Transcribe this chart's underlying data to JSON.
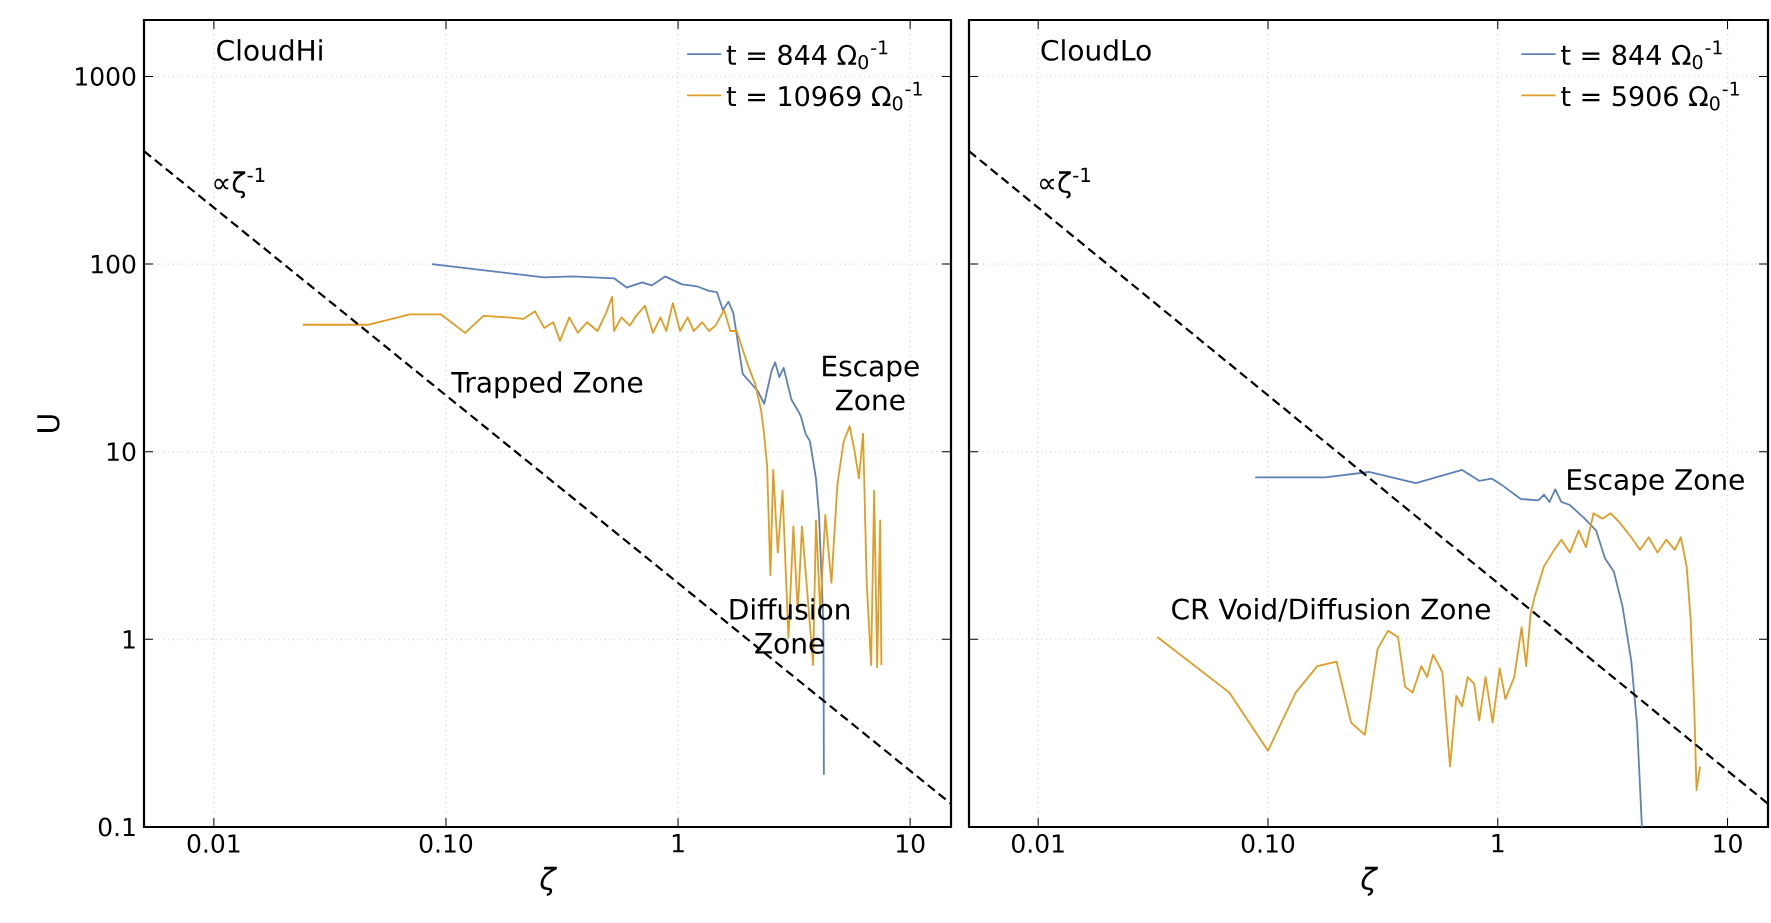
{
  "chart_data": [
    {
      "type": "line",
      "xlabel": "ζ",
      "ylabel": "U",
      "log": "xy",
      "grid": true,
      "legend": "top right",
      "xlim": [
        0.005,
        15
      ],
      "ylim": [
        0.1,
        2000
      ],
      "xticks": [
        0.01,
        {
          "value": 0.1,
          "label": "0.10"
        },
        1,
        10
      ],
      "yticks": [
        0.1,
        1,
        10,
        100,
        1000
      ],
      "annotations": [
        "CloudHi",
        "Trapped Zone",
        "Escape Zone",
        "Diffusion Zone",
        "∝ζ$^{-1}$"
      ],
      "series": [
        {
          "name": "t = 844 Ω$_{0}$$^{-1}$",
          "color": "#5e81b5",
          "x": [
            0.087,
            0.265,
            0.35,
            0.53,
            0.6,
            0.7,
            0.77,
            0.88,
            1.04,
            1.21,
            1.36,
            1.47,
            1.56,
            1.65,
            1.73,
            1.9,
            2.21,
            2.35,
            2.53,
            2.62,
            2.73,
            2.85,
            3.08,
            3.28,
            3.38,
            3.55,
            3.7,
            3.93,
            4.05,
            4.23,
            4.25
          ],
          "values": [
            100,
            85,
            86,
            84,
            75,
            80,
            77,
            86,
            78,
            76,
            72,
            71,
            57,
            63,
            55,
            26,
            21,
            18,
            27,
            30,
            25,
            28,
            19,
            16.6,
            15.5,
            12.4,
            11.4,
            7.2,
            4.6,
            1.19,
            0.19
          ]
        },
        {
          "name": "t = 10969 Ω$_{0}$$^{-1}$",
          "color": "#e19c24",
          "x": [
            0.0242,
            0.046,
            0.07,
            0.095,
            0.121,
            0.145,
            0.185,
            0.215,
            0.242,
            0.265,
            0.29,
            0.31,
            0.34,
            0.37,
            0.405,
            0.45,
            0.49,
            0.52,
            0.53,
            0.57,
            0.62,
            0.66,
            0.72,
            0.78,
            0.84,
            0.89,
            0.95,
            1.02,
            1.1,
            1.17,
            1.27,
            1.36,
            1.45,
            1.58,
            1.68,
            1.79,
            1.9,
            2.02,
            2.15,
            2.28,
            2.35,
            2.42,
            2.5,
            2.57,
            2.69,
            2.82,
            2.99,
            3.14,
            3.28,
            3.42,
            3.59,
            3.82,
            3.93,
            4.1,
            4.31,
            4.58,
            4.86,
            5.17,
            5.49,
            5.77,
            6.02,
            6.27,
            6.5,
            6.79,
            7.0,
            7.21,
            7.43,
            7.52
          ],
          "values": [
            47.5,
            47.5,
            54,
            54,
            43,
            53,
            52,
            51,
            56,
            45.7,
            49,
            39,
            52,
            43,
            49,
            44,
            55,
            67,
            44,
            52,
            47,
            53,
            60,
            43,
            52,
            44,
            62,
            44,
            52,
            44,
            49,
            44,
            47,
            57,
            44,
            44,
            35,
            28,
            23,
            16.6,
            12.3,
            8.4,
            2.2,
            8.0,
            2.9,
            6.2,
            1.02,
            4.0,
            1.4,
            4.0,
            1.9,
            0.73,
            4.3,
            1.4,
            4.6,
            2.0,
            6.7,
            11.3,
            13.7,
            10,
            7.2,
            12.5,
            2.0,
            0.73,
            6.2,
            0.71,
            4.3,
            0.73
          ]
        },
        {
          "color": "#000000",
          "line_style": "dashed",
          "x": [
            0.005,
            15
          ],
          "values": [
            400,
            0.133
          ]
        }
      ]
    },
    {
      "type": "line",
      "xlabel": "ζ",
      "log": "xy",
      "grid": true,
      "legend": "top right",
      "tick_labels": "x",
      "xlim": [
        0.005,
        15
      ],
      "ylim": [
        0.1,
        2000
      ],
      "xticks": [
        0.01,
        {
          "value": 0.1,
          "label": "0.10"
        },
        1,
        10
      ],
      "yticks": [
        0.1,
        1,
        10,
        100,
        1000
      ],
      "annotations": [
        "CloudLo",
        "Escape Zone",
        "CR Void/Diffusion Zone",
        "∝ζ$^{-1}$"
      ],
      "series": [
        {
          "name": "t = 844 Ω$_{0}$$^{-1}$",
          "color": "#5e81b5",
          "x": [
            0.088,
            0.177,
            0.275,
            0.44,
            0.7,
            0.83,
            0.94,
            1.05,
            1.26,
            1.5,
            1.59,
            1.68,
            1.78,
            1.89,
            2.06,
            2.39,
            2.68,
            2.93,
            3.2,
            3.49,
            3.81,
            4.04,
            4.24
          ],
          "values": [
            7.3,
            7.3,
            7.8,
            6.8,
            8.0,
            7.0,
            7.2,
            6.6,
            5.6,
            5.5,
            5.9,
            5.4,
            6.3,
            5.4,
            5.2,
            4.4,
            3.8,
            2.7,
            2.3,
            1.5,
            0.77,
            0.35,
            0.1
          ]
        },
        {
          "name": "t = 5906 Ω$_{0}$$^{-1}$",
          "color": "#e19c24",
          "x": [
            0.033,
            0.068,
            0.1,
            0.132,
            0.164,
            0.199,
            0.23,
            0.264,
            0.3,
            0.333,
            0.368,
            0.395,
            0.426,
            0.465,
            0.493,
            0.523,
            0.574,
            0.62,
            0.66,
            0.7,
            0.74,
            0.79,
            0.83,
            0.885,
            0.95,
            1.02,
            1.08,
            1.18,
            1.27,
            1.33,
            1.39,
            1.45,
            1.59,
            1.73,
            1.89,
            2.06,
            2.25,
            2.42,
            2.61,
            2.85,
            3.1,
            3.39,
            3.81,
            4.16,
            4.54,
            4.96,
            5.41,
            5.9,
            6.26,
            6.64,
            6.91,
            7.16,
            7.33,
            7.59
          ],
          "values": [
            1.03,
            0.52,
            0.255,
            0.52,
            0.72,
            0.76,
            0.36,
            0.31,
            0.89,
            1.11,
            1.03,
            0.56,
            0.52,
            0.72,
            0.63,
            0.83,
            0.67,
            0.21,
            0.5,
            0.44,
            0.63,
            0.58,
            0.37,
            0.63,
            0.36,
            0.7,
            0.48,
            0.63,
            1.16,
            0.72,
            1.37,
            1.7,
            2.45,
            2.9,
            3.4,
            2.9,
            3.8,
            3.1,
            4.7,
            4.4,
            4.7,
            4.2,
            3.5,
            3.0,
            3.5,
            2.9,
            3.4,
            3.0,
            3.5,
            2.45,
            1.28,
            0.44,
            0.157,
            0.21
          ]
        },
        {
          "color": "#000000",
          "line_style": "dashed",
          "x": [
            0.005,
            15
          ],
          "values": [
            400,
            0.133
          ]
        }
      ]
    }
  ]
}
